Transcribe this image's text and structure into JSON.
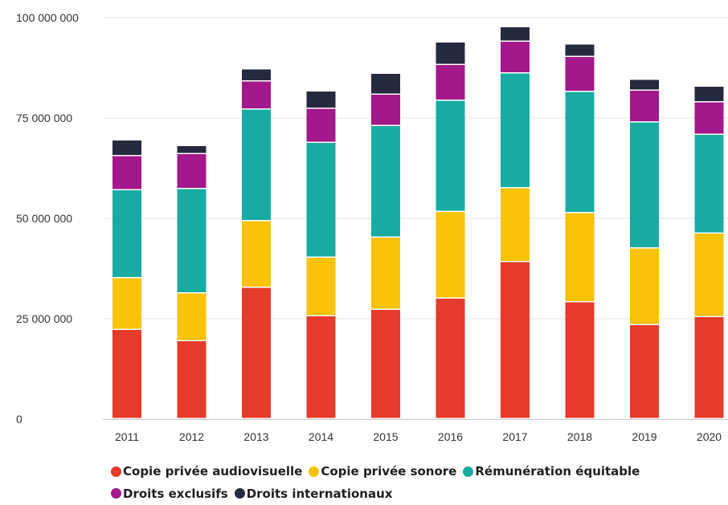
{
  "chart_data": {
    "type": "bar",
    "stacked": true,
    "title": "",
    "xlabel": "",
    "ylabel": "",
    "ylim": [
      0,
      100000000
    ],
    "y_ticks": [
      0,
      25000000,
      50000000,
      75000000,
      100000000
    ],
    "y_tick_labels": [
      "0",
      "25 000 000",
      "50 000 000",
      "75 000 000",
      "100 000 000"
    ],
    "categories": [
      "2011",
      "2012",
      "2013",
      "2014",
      "2015",
      "2016",
      "2017",
      "2018",
      "2019",
      "2020"
    ],
    "grid": true,
    "legend_position": "bottom",
    "series": [
      {
        "name": "Copie privée audiovisuelle",
        "color": "#e63a2a",
        "values": [
          22200000,
          19400000,
          32700000,
          25600000,
          27200000,
          30000000,
          39100000,
          29100000,
          23400000,
          25400000
        ]
      },
      {
        "name": "Copie privée sonore",
        "color": "#fbc20a",
        "values": [
          12900000,
          11900000,
          16600000,
          14600000,
          18000000,
          21600000,
          18400000,
          22200000,
          19100000,
          20800000
        ]
      },
      {
        "name": "Rémunération équitable",
        "color": "#18aba3",
        "values": [
          21900000,
          26000000,
          27800000,
          28600000,
          27800000,
          27700000,
          28600000,
          30200000,
          31400000,
          24600000
        ]
      },
      {
        "name": "Droits exclusifs",
        "color": "#a3188b",
        "values": [
          8500000,
          8700000,
          7000000,
          8500000,
          7800000,
          8900000,
          7900000,
          8700000,
          7900000,
          8100000
        ]
      },
      {
        "name": "Droits internationaux",
        "color": "#252a3f",
        "values": [
          3900000,
          2000000,
          3000000,
          4300000,
          5200000,
          5600000,
          3600000,
          3100000,
          2700000,
          3900000
        ]
      }
    ]
  }
}
